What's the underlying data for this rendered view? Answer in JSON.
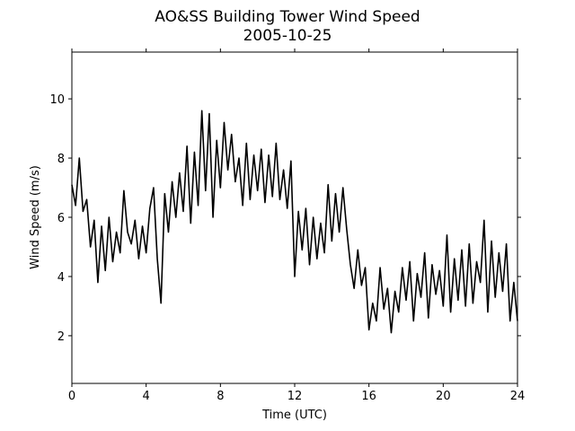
{
  "chart_data": {
    "type": "line",
    "title": "AO&SS Building Tower Wind Speed",
    "subtitle": "2005-10-25",
    "x_label": "Time (UTC)",
    "y_label": "Wind Speed (m/s)",
    "color": "#000000",
    "xlim": [
      0,
      24
    ],
    "xticks": [
      0,
      4,
      8,
      12,
      16,
      20,
      24
    ],
    "ylim": [
      0.39,
      11.58
    ],
    "yticks": [
      2,
      4,
      6,
      8,
      10
    ],
    "x": [
      0,
      0.2,
      0.4,
      0.6,
      0.8,
      1,
      1.2,
      1.4,
      1.6,
      1.8,
      2,
      2.2,
      2.4,
      2.6,
      2.8,
      3,
      3.2,
      3.4,
      3.6,
      3.8,
      4,
      4.2,
      4.4,
      4.6,
      4.8,
      5,
      5.2,
      5.4,
      5.6,
      5.8,
      6,
      6.2,
      6.4,
      6.6,
      6.8,
      7,
      7.2,
      7.4,
      7.6,
      7.8,
      8,
      8.2,
      8.4,
      8.6,
      8.8,
      9,
      9.2,
      9.4,
      9.6,
      9.8,
      10,
      10.2,
      10.4,
      10.6,
      10.8,
      11,
      11.2,
      11.4,
      11.6,
      11.8,
      12,
      12.2,
      12.4,
      12.6,
      12.8,
      13,
      13.2,
      13.4,
      13.6,
      13.8,
      14,
      14.2,
      14.4,
      14.6,
      14.8,
      15,
      15.2,
      15.4,
      15.6,
      15.8,
      16,
      16.2,
      16.4,
      16.6,
      16.8,
      17,
      17.2,
      17.4,
      17.6,
      17.8,
      18,
      18.2,
      18.4,
      18.6,
      18.8,
      19,
      19.2,
      19.4,
      19.6,
      19.8,
      20,
      20.2,
      20.4,
      20.6,
      20.8,
      21,
      21.2,
      21.4,
      21.6,
      21.8,
      22,
      22.2,
      22.4,
      22.6,
      22.8,
      23,
      23.2,
      23.4,
      23.6,
      23.8,
      24
    ],
    "y": [
      7.1,
      6.4,
      8.0,
      6.2,
      6.6,
      5.0,
      5.9,
      3.8,
      5.7,
      4.2,
      6.0,
      4.5,
      5.5,
      4.8,
      6.9,
      5.5,
      5.1,
      5.9,
      4.6,
      5.7,
      4.8,
      6.3,
      7.0,
      4.6,
      3.1,
      6.8,
      5.5,
      7.2,
      6.0,
      7.5,
      6.2,
      8.4,
      5.8,
      8.2,
      6.4,
      9.6,
      6.9,
      9.5,
      6.0,
      8.6,
      7.0,
      9.2,
      7.6,
      8.8,
      7.2,
      8.0,
      6.4,
      8.5,
      6.6,
      8.1,
      6.9,
      8.3,
      6.5,
      8.1,
      6.7,
      8.5,
      6.6,
      7.6,
      6.3,
      7.9,
      4.0,
      6.2,
      4.9,
      6.3,
      4.4,
      6.0,
      4.6,
      5.8,
      4.8,
      7.1,
      5.2,
      6.8,
      5.5,
      7.0,
      5.6,
      4.4,
      3.6,
      4.9,
      3.7,
      4.3,
      2.2,
      3.1,
      2.5,
      4.3,
      2.9,
      3.6,
      2.1,
      3.5,
      2.8,
      4.3,
      3.2,
      4.5,
      2.5,
      4.1,
      3.3,
      4.8,
      2.6,
      4.4,
      3.4,
      4.2,
      3.0,
      5.4,
      2.8,
      4.6,
      3.2,
      4.9,
      3.0,
      5.1,
      3.1,
      4.5,
      3.8,
      5.9,
      2.8,
      5.2,
      3.3,
      4.8,
      3.5,
      5.1,
      2.5,
      3.8,
      2.5
    ]
  }
}
